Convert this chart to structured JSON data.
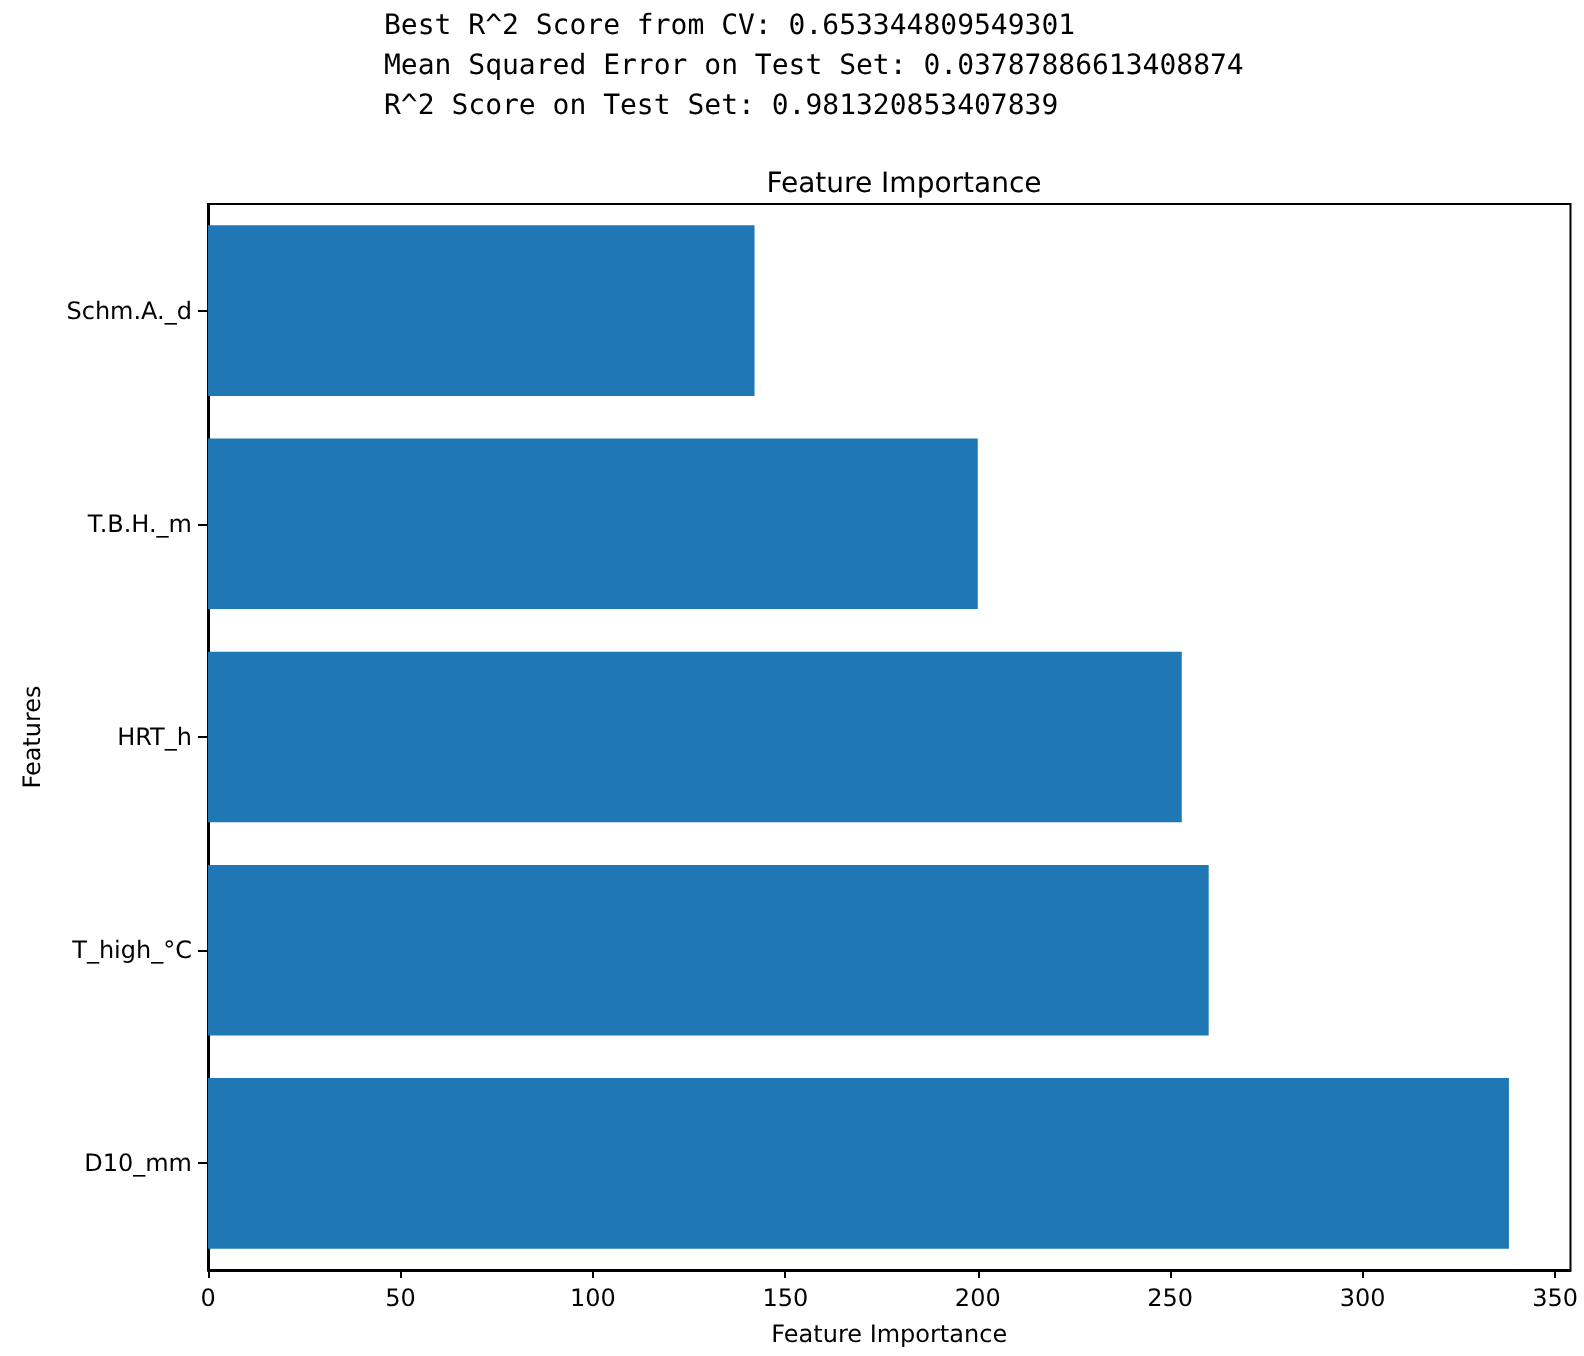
{
  "chart_data": {
    "type": "bar",
    "orientation": "horizontal",
    "title": "Feature Importance",
    "xlabel": "Feature Importance",
    "ylabel": "Features",
    "annotations": [
      "Best R^2 Score from CV: 0.653344809549301",
      "Mean Squared Error on Test Set: 0.03787886613408874",
      "R^2 Score on Test Set: 0.981320853407839"
    ],
    "categories": [
      "Schm.A._d",
      "T.B.H._m",
      "HRT_h",
      "T_high_°C",
      "D10_mm"
    ],
    "values": [
      142,
      200,
      253,
      260,
      338
    ],
    "color": "#1f77b4",
    "xlim": [
      0,
      354
    ],
    "xticks": [
      0,
      50,
      100,
      150,
      200,
      250,
      300,
      350
    ],
    "grid": false
  }
}
